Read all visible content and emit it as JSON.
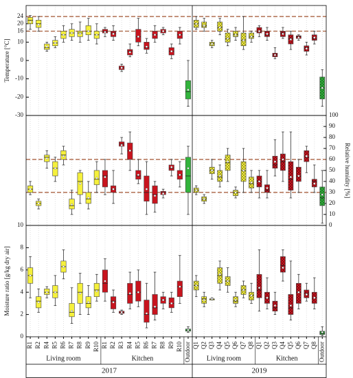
{
  "chart_data": {
    "type": "box",
    "years": [
      {
        "name": "2017",
        "fill_style": "solid",
        "groups": [
          {
            "name": "Living room",
            "color": "#f5f03c",
            "label_position": "below",
            "categories": [
              "R1",
              "R2",
              "R4",
              "R5",
              "R6",
              "R7",
              "R8",
              "R9",
              "R10"
            ]
          },
          {
            "name": "Kitchen",
            "color": "#c8141e",
            "label_position": "below",
            "categories": [
              "R1",
              "R2",
              "R3",
              "R4",
              "R5",
              "R6",
              "R7",
              "R8",
              "R9",
              "R10"
            ]
          },
          {
            "name": "Outdoor",
            "color": "#32b43c",
            "label_position": "tick",
            "categories": [
              null
            ]
          }
        ]
      },
      {
        "name": "2019",
        "fill_style": "checkered",
        "groups": [
          {
            "name": "Living room",
            "color": "#f5f03c",
            "label_position": "below",
            "categories": [
              "Q1",
              "Q2",
              "Q3",
              "Q4",
              "Q5",
              "Q6",
              "Q7",
              "Q8"
            ]
          },
          {
            "name": "Kitchen",
            "color": "#c8141e",
            "label_position": "below",
            "categories": [
              "Q1",
              "Q2",
              "Q3",
              "Q4",
              "Q5",
              "Q6",
              "Q7",
              "Q8"
            ]
          },
          {
            "name": "Outdoor",
            "color": "#32b43c",
            "label_position": "tick",
            "categories": [
              null
            ]
          }
        ]
      }
    ],
    "panels": [
      {
        "ylabel": "Temperature [°C]",
        "axis": "left",
        "ylim": [
          -30,
          30
        ],
        "yticks": [
          -30,
          -20,
          -10,
          0,
          10,
          16,
          20,
          24
        ],
        "reference_lines": [
          24,
          16
        ],
        "boxes": [
          [
            17,
            20,
            22,
            23.5,
            24.5
          ],
          [
            16,
            18,
            20,
            22,
            24
          ],
          [
            5,
            6,
            7,
            9,
            10
          ],
          [
            7,
            8,
            9.5,
            11,
            13
          ],
          [
            10,
            12,
            14,
            16,
            19
          ],
          [
            11,
            13,
            15,
            17,
            20
          ],
          [
            10,
            13,
            15,
            16,
            21
          ],
          [
            11,
            14,
            16,
            19,
            23
          ],
          [
            9,
            12,
            14,
            16,
            20
          ],
          [
            13,
            15,
            16,
            17,
            18
          ],
          [
            11,
            13,
            15,
            16,
            19
          ],
          [
            -6,
            -5,
            -4,
            -3,
            -2
          ],
          [
            2,
            3,
            5,
            6,
            9
          ],
          [
            8,
            10,
            13,
            17,
            23
          ],
          [
            4,
            6,
            7,
            10,
            12
          ],
          [
            10,
            12,
            14,
            16,
            19
          ],
          [
            14,
            15,
            16,
            17,
            18
          ],
          [
            1,
            3,
            5,
            7,
            9
          ],
          [
            9,
            12,
            14,
            16,
            18
          ],
          [
            -25,
            -21,
            -17,
            -11,
            0
          ],
          [
            17,
            18,
            20,
            22,
            24
          ],
          [
            16,
            18,
            19,
            21,
            23
          ],
          [
            7,
            8,
            9,
            10,
            11
          ],
          [
            14,
            16,
            18,
            21,
            23
          ],
          [
            8,
            10,
            12,
            15,
            17
          ],
          [
            11,
            13,
            14,
            16,
            18
          ],
          [
            6,
            8,
            11,
            15,
            24
          ],
          [
            10,
            12,
            13,
            15,
            16
          ],
          [
            13,
            15,
            16,
            18,
            19
          ],
          [
            11,
            13,
            14,
            16,
            18
          ],
          [
            1,
            2,
            3,
            4,
            7
          ],
          [
            12,
            13,
            15,
            16,
            18
          ],
          [
            6,
            9,
            12,
            14,
            16
          ],
          [
            11,
            12,
            13,
            13.5,
            14
          ],
          [
            3,
            5,
            7,
            8,
            10
          ],
          [
            9,
            11,
            12,
            14,
            16
          ],
          [
            -25,
            -21,
            -15,
            -9,
            -5
          ]
        ],
        "means": [
          21,
          19.5,
          7.5,
          9.5,
          14,
          15,
          14.5,
          16,
          14,
          15.5,
          14.5,
          -4,
          4.5,
          13,
          7.5,
          14,
          16,
          5,
          14,
          -16,
          20,
          19,
          9,
          18,
          12,
          14,
          11,
          13,
          16,
          14.5,
          3,
          14.5,
          11.5,
          12.5,
          6.5,
          12.5,
          -15
        ]
      },
      {
        "ylabel": "Relative humidity [%]",
        "axis": "right",
        "ylim": [
          0,
          100
        ],
        "yticks": [
          0,
          10,
          20,
          30,
          40,
          50,
          60,
          70,
          80,
          90,
          100
        ],
        "reference_lines": [
          60,
          30
        ],
        "boxes": [
          [
            28,
            30,
            33,
            36,
            40
          ],
          [
            15,
            18,
            20,
            22,
            24
          ],
          [
            52,
            58,
            62,
            64,
            68
          ],
          [
            40,
            45,
            52,
            58,
            62
          ],
          [
            55,
            60,
            64,
            68,
            72
          ],
          [
            10,
            15,
            18,
            24,
            32
          ],
          [
            20,
            28,
            40,
            48,
            50
          ],
          [
            15,
            20,
            24,
            30,
            40
          ],
          [
            30,
            37,
            42,
            50,
            58
          ],
          [
            28,
            35,
            45,
            50,
            60
          ],
          [
            20,
            30,
            33,
            36,
            50
          ],
          [
            65,
            72,
            74,
            76,
            80
          ],
          [
            50,
            60,
            68,
            75,
            85
          ],
          [
            38,
            42,
            45,
            50,
            60
          ],
          [
            10,
            22,
            30,
            45,
            58
          ],
          [
            12,
            20,
            28,
            36,
            40
          ],
          [
            25,
            28,
            30,
            31,
            33
          ],
          [
            45,
            50,
            52,
            55,
            60
          ],
          [
            35,
            42,
            46,
            50,
            58
          ],
          [
            10,
            30,
            45,
            62,
            72
          ],
          [
            28,
            30,
            32,
            34,
            36
          ],
          [
            20,
            22,
            24,
            26,
            28
          ],
          [
            42,
            47,
            50,
            53,
            60
          ],
          [
            35,
            40,
            44,
            50,
            55
          ],
          [
            40,
            50,
            57,
            64,
            70
          ],
          [
            25,
            27,
            30,
            32,
            35
          ],
          [
            30,
            40,
            50,
            58,
            70
          ],
          [
            30,
            34,
            38,
            44,
            50
          ],
          [
            25,
            35,
            40,
            45,
            50
          ],
          [
            25,
            30,
            32,
            37,
            50
          ],
          [
            45,
            52,
            55,
            63,
            78
          ],
          [
            40,
            50,
            58,
            65,
            85
          ],
          [
            25,
            32,
            42,
            58,
            85
          ],
          [
            30,
            40,
            45,
            53,
            60
          ],
          [
            48,
            58,
            62,
            68,
            72
          ],
          [
            30,
            35,
            40,
            42,
            55
          ],
          [
            2,
            18,
            25,
            35,
            50
          ]
        ],
        "means": [
          33,
          20,
          61,
          52,
          63,
          19,
          38,
          25,
          43,
          44,
          33,
          73,
          68,
          46,
          33,
          27,
          29,
          53,
          46,
          52,
          32,
          24,
          50,
          45,
          58,
          30,
          50,
          39,
          40,
          34,
          58,
          60,
          44,
          45,
          63,
          38,
          28
        ]
      },
      {
        "ylabel": "Moisture ratio [g/kg dry air]",
        "axis": "left",
        "ylim": [
          0,
          10
        ],
        "yticks": [
          0,
          2,
          4,
          6,
          8,
          10
        ],
        "reference_lines": [],
        "boxes": [
          [
            3.5,
            4.8,
            5.5,
            6.2,
            7.2
          ],
          [
            2.2,
            2.6,
            3.2,
            3.6,
            4.3
          ],
          [
            3.5,
            3.8,
            4,
            4.3,
            4.5
          ],
          [
            2.8,
            3.5,
            4,
            4.6,
            5.5
          ],
          [
            5.2,
            5.8,
            6.3,
            6.8,
            7.8
          ],
          [
            1.2,
            1.8,
            2.2,
            3,
            4.4
          ],
          [
            2,
            3,
            4,
            4.8,
            5.7
          ],
          [
            2,
            2.6,
            3,
            3.6,
            4.6
          ],
          [
            3.2,
            3.6,
            4.2,
            4.8,
            5.6
          ],
          [
            3.2,
            4,
            4.8,
            6,
            7
          ],
          [
            2.2,
            2.5,
            3.2,
            3.6,
            4.2
          ],
          [
            2,
            2.1,
            2.2,
            2.3,
            2.4
          ],
          [
            2.5,
            3,
            3.8,
            4.8,
            5.8
          ],
          [
            2.7,
            3.2,
            4,
            5,
            6
          ],
          [
            0.8,
            1.3,
            2,
            3.3,
            4.8
          ],
          [
            1.5,
            2,
            2.6,
            3.8,
            5.8
          ],
          [
            2.5,
            3,
            3.3,
            3.6,
            4
          ],
          [
            2.2,
            2.6,
            3,
            3.5,
            4
          ],
          [
            3,
            3.6,
            4.5,
            5,
            7.3
          ],
          [
            0.4,
            0.5,
            0.6,
            0.7,
            0.9
          ],
          [
            3.6,
            4.2,
            4.6,
            5,
            5.5
          ],
          [
            2.7,
            3,
            3.4,
            3.6,
            4
          ],
          [
            3.3,
            3.3,
            3.4,
            3.4,
            3.5
          ],
          [
            4.2,
            4.8,
            5.5,
            6.2,
            6.8
          ],
          [
            4,
            4.6,
            5,
            5.4,
            6.2
          ],
          [
            2.7,
            3,
            3.2,
            3.6,
            4
          ],
          [
            3.5,
            3.8,
            4.2,
            4.6,
            5
          ],
          [
            3,
            3.3,
            3.7,
            4,
            4.8
          ],
          [
            2.3,
            3.5,
            4.2,
            5.6,
            7.8
          ],
          [
            2.5,
            3,
            3.5,
            4,
            5.3
          ],
          [
            2,
            2.3,
            2.6,
            3.2,
            4
          ],
          [
            5,
            5.8,
            6.4,
            7.2,
            7.8
          ],
          [
            1.5,
            2,
            2.6,
            3.8,
            6.8
          ],
          [
            2.5,
            3,
            4,
            4.8,
            5.6
          ],
          [
            3.2,
            3.5,
            3.9,
            4.2,
            4.8
          ],
          [
            2.5,
            3,
            3.5,
            4,
            5.3
          ],
          [
            0.1,
            0.2,
            0.3,
            0.5,
            0.9
          ]
        ],
        "means": [
          5.5,
          3.1,
          4,
          4,
          6.3,
          2.3,
          3.9,
          3.1,
          4.1,
          5,
          3.1,
          2.2,
          3.9,
          4,
          2.1,
          2.7,
          3.3,
          3,
          4.5,
          0.6,
          4.6,
          3.3,
          3.4,
          5.6,
          5,
          3.3,
          4.2,
          3.7,
          4.4,
          3.5,
          2.8,
          6.2,
          2.8,
          4,
          3.8,
          3.5,
          0.4
        ]
      }
    ]
  }
}
